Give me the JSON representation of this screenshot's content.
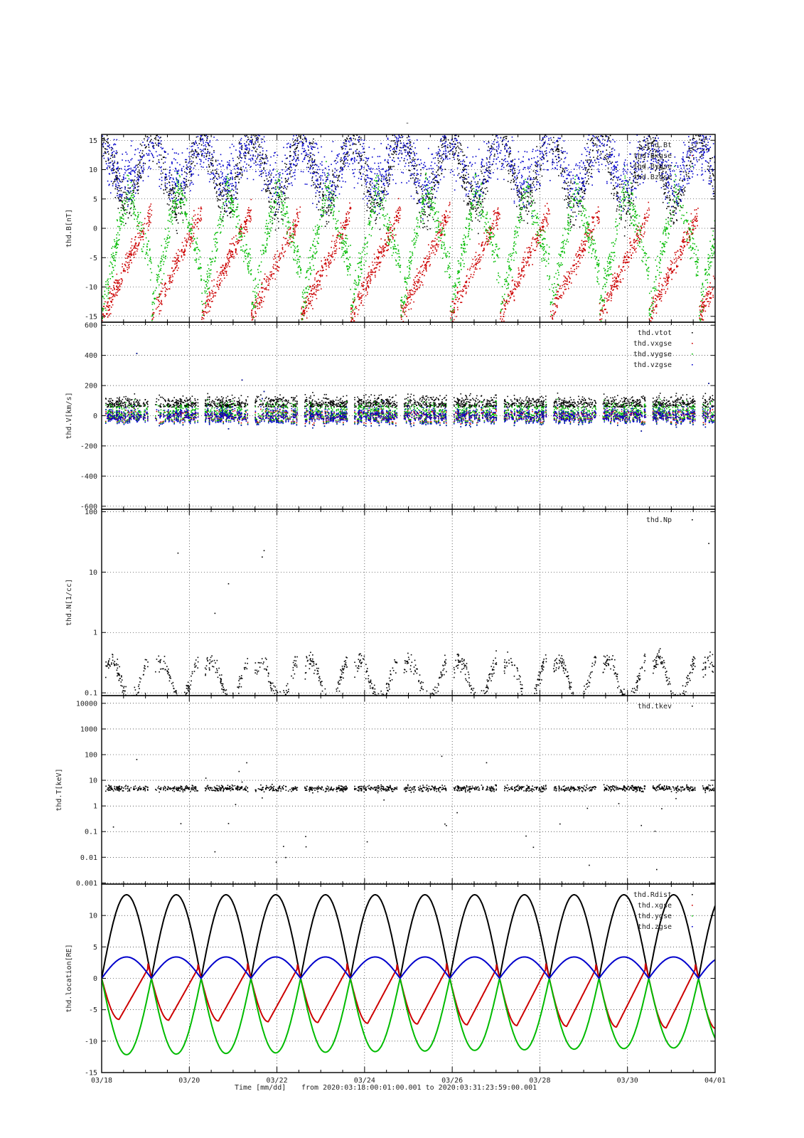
{
  "page_title": "-",
  "colors": {
    "black": "#000000",
    "red": "#cc0000",
    "green": "#00bb00",
    "blue": "#0000cc"
  },
  "x_axis": {
    "label": "Time [mm/dd]",
    "range_text": "from 2020:03:18:00:01:00.001  to  2020:03:31:23:59:00.001",
    "range_days": [
      0,
      14
    ],
    "tick_labels": [
      "03/18",
      "03/20",
      "03/22",
      "03/24",
      "03/26",
      "03/28",
      "03/30",
      "04/01"
    ]
  },
  "chart_data": [
    {
      "type": "scatter",
      "ylabel": "thd.B[nT]",
      "ylim": [
        -16,
        16
      ],
      "yscale": "linear",
      "yticks": [
        -15,
        -10,
        -5,
        0,
        5,
        10,
        15
      ],
      "grid": true,
      "legend_placement": "top-right",
      "series": [
        {
          "name": "thd.Bt",
          "color": "black"
        },
        {
          "name": "thd.Bxgse",
          "color": "red"
        },
        {
          "name": "thd.Bygse",
          "color": "green"
        },
        {
          "name": "thd.Bzgse",
          "color": "blue"
        }
      ]
    },
    {
      "type": "scatter",
      "ylabel": "thd.V[km/s]",
      "ylim": [
        -620,
        620
      ],
      "yscale": "linear",
      "yticks": [
        -600,
        -400,
        -200,
        0,
        200,
        400,
        600
      ],
      "grid": true,
      "legend_placement": "top-right",
      "series": [
        {
          "name": "thd.vtot",
          "color": "black"
        },
        {
          "name": "thd.vxgse",
          "color": "red"
        },
        {
          "name": "thd.vygse",
          "color": "green"
        },
        {
          "name": "thd.vzgse",
          "color": "blue"
        }
      ]
    },
    {
      "type": "scatter",
      "ylabel": "thd.N[1/cc]",
      "ylim": [
        0.09,
        110
      ],
      "yscale": "log",
      "yticks": [
        0.1,
        1,
        10,
        100
      ],
      "ytick_labels": [
        "0.1",
        "1",
        "10",
        "100"
      ],
      "grid": true,
      "legend_placement": "top-right",
      "series": [
        {
          "name": "thd.Np",
          "color": "black"
        }
      ]
    },
    {
      "type": "scatter",
      "ylabel": "thd.T[keV]",
      "ylim": [
        0.0009,
        20000
      ],
      "yscale": "log",
      "yticks": [
        0.001,
        0.01,
        0.1,
        1,
        10,
        100,
        1000,
        10000
      ],
      "ytick_labels": [
        "0.001",
        "0.01",
        "0.1",
        "1",
        "10",
        "100",
        "1000",
        "10000"
      ],
      "grid": true,
      "legend_placement": "top-right",
      "series": [
        {
          "name": "thd.tkev",
          "color": "black"
        }
      ]
    },
    {
      "type": "line",
      "ylabel": "thd.location[RE]",
      "ylim": [
        -15,
        15
      ],
      "yscale": "linear",
      "yticks": [
        -15,
        -10,
        -5,
        0,
        5,
        10
      ],
      "grid": true,
      "legend_placement": "top-right",
      "orbit_period_days": 1.135,
      "series": [
        {
          "name": "thd.Rdist",
          "color": "black",
          "apogee": 13.3
        },
        {
          "name": "thd.xgse",
          "color": "red",
          "min_start": -6.5,
          "min_end": -8.0,
          "max": 2.5
        },
        {
          "name": "thd.ygse",
          "color": "green",
          "min_start": -12.2,
          "min_end": -11.0
        },
        {
          "name": "thd.zgse",
          "color": "blue",
          "max": 3.4
        }
      ]
    }
  ]
}
